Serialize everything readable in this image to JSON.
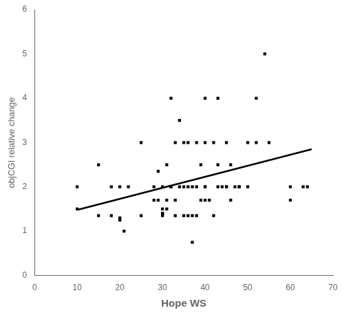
{
  "chart_data": {
    "type": "scatter",
    "xlabel": "Hope WS",
    "ylabel": "objCGI relative change",
    "series": [
      {
        "type": "scatter",
        "color": "#000000",
        "marker": "square",
        "x": [
          10,
          10,
          15,
          15,
          18,
          18,
          20,
          20,
          20,
          21,
          22,
          25,
          25,
          28,
          28,
          29,
          29,
          30,
          30,
          30,
          30,
          30,
          31,
          31,
          31,
          32,
          32,
          32,
          33,
          33,
          33,
          34,
          34,
          35,
          35,
          35,
          36,
          36,
          36,
          37,
          37,
          37,
          38,
          38,
          38,
          39,
          39,
          40,
          40,
          40,
          40,
          40,
          41,
          42,
          42,
          43,
          43,
          43,
          44,
          45,
          45,
          45,
          46,
          46,
          47,
          48,
          48,
          50,
          50,
          52,
          52,
          54,
          55,
          60,
          60,
          63,
          64
        ],
        "values": [
          2.0,
          1.5,
          2.5,
          1.35,
          2.0,
          1.35,
          2.0,
          1.3,
          1.25,
          1.0,
          2.0,
          3.0,
          1.35,
          2.0,
          1.7,
          2.35,
          1.7,
          2.0,
          1.5,
          1.4,
          1.4,
          1.35,
          2.5,
          1.7,
          1.5,
          2.0,
          2.0,
          4.0,
          3.0,
          1.7,
          1.35,
          2.0,
          3.5,
          3.0,
          2.0,
          1.35,
          3.0,
          2.0,
          1.35,
          2.0,
          1.35,
          0.75,
          3.0,
          2.0,
          1.35,
          2.5,
          1.7,
          4.0,
          3.0,
          2.0,
          2.0,
          1.7,
          1.7,
          3.0,
          1.35,
          4.0,
          2.5,
          2.0,
          2.0,
          3.0,
          2.0,
          2.0,
          2.5,
          1.7,
          2.0,
          2.0,
          2.0,
          3.0,
          2.0,
          4.0,
          3.0,
          5.0,
          3.0,
          2.0,
          1.7,
          2.0,
          2.0
        ]
      },
      {
        "type": "line",
        "color": "#000000",
        "line_style": "solid",
        "x": [
          10,
          65
        ],
        "values": [
          1.48,
          2.85
        ]
      }
    ],
    "xlim": [
      0,
      70
    ],
    "ylim": [
      0,
      6
    ],
    "xticks": [
      0,
      10,
      20,
      30,
      40,
      50,
      60,
      70
    ],
    "yticks": [
      0,
      1,
      2,
      3,
      4,
      5,
      6
    ],
    "grid": false
  }
}
